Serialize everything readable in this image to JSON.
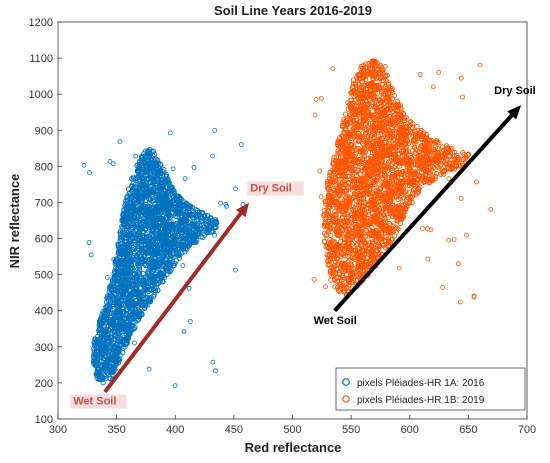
{
  "chart_data": {
    "type": "scatter",
    "title": "Soil Line Years 2016-2019",
    "xlabel": "Red reflectance",
    "ylabel": "NIR reflectance",
    "xlim": [
      300,
      700
    ],
    "ylim": [
      100,
      1200
    ],
    "xticks": [
      300,
      350,
      400,
      450,
      500,
      550,
      600,
      650,
      700
    ],
    "yticks": [
      100,
      200,
      300,
      400,
      500,
      600,
      700,
      800,
      900,
      1000,
      1100,
      1200
    ],
    "grid": false,
    "legend_position": "bottom-right",
    "series": [
      {
        "name": "pixels Pléiades-HR 1A: 2016",
        "color": "#0072BD",
        "marker": "circle",
        "cluster_polygon": [
          [
            333,
            200
          ],
          [
            330,
            260
          ],
          [
            330,
            320
          ],
          [
            336,
            380
          ],
          [
            342,
            440
          ],
          [
            348,
            520
          ],
          [
            352,
            600
          ],
          [
            356,
            680
          ],
          [
            361,
            750
          ],
          [
            368,
            810
          ],
          [
            375,
            850
          ],
          [
            384,
            840
          ],
          [
            392,
            780
          ],
          [
            402,
            720
          ],
          [
            414,
            690
          ],
          [
            428,
            665
          ],
          [
            436,
            650
          ],
          [
            434,
            620
          ],
          [
            422,
            600
          ],
          [
            410,
            570
          ],
          [
            398,
            520
          ],
          [
            386,
            460
          ],
          [
            374,
            400
          ],
          [
            362,
            330
          ],
          [
            352,
            260
          ],
          [
            345,
            200
          ]
        ]
      },
      {
        "name": "pixels Pléiades-HR 1B: 2019",
        "color": "#FF5500",
        "marker": "circle",
        "cluster_polygon": [
          [
            534,
            465
          ],
          [
            528,
            560
          ],
          [
            526,
            660
          ],
          [
            530,
            760
          ],
          [
            538,
            860
          ],
          [
            546,
            960
          ],
          [
            552,
            1040
          ],
          [
            560,
            1090
          ],
          [
            570,
            1100
          ],
          [
            580,
            1060
          ],
          [
            588,
            990
          ],
          [
            600,
            930
          ],
          [
            618,
            880
          ],
          [
            636,
            850
          ],
          [
            652,
            832
          ],
          [
            648,
            800
          ],
          [
            630,
            780
          ],
          [
            610,
            740
          ],
          [
            598,
            680
          ],
          [
            588,
            610
          ],
          [
            576,
            540
          ],
          [
            560,
            480
          ],
          [
            546,
            440
          ]
        ]
      }
    ],
    "annotations": [
      {
        "text": "Wet Soil",
        "x": 313,
        "y": 140,
        "color": "#C0504D"
      },
      {
        "text": "Dry Soil",
        "x": 464,
        "y": 730,
        "color": "#C0504D"
      },
      {
        "text": "Wet Soil",
        "x": 518,
        "y": 363,
        "color": "#000000"
      },
      {
        "text": "Dry Soil",
        "x": 672,
        "y": 1000,
        "color": "#000000"
      }
    ],
    "arrows": [
      {
        "from": [
          340,
          175
        ],
        "to": [
          463,
          700
        ],
        "color": "#A52A2A"
      },
      {
        "from": [
          536,
          400
        ],
        "to": [
          695,
          970
        ],
        "color": "#000000"
      }
    ]
  }
}
